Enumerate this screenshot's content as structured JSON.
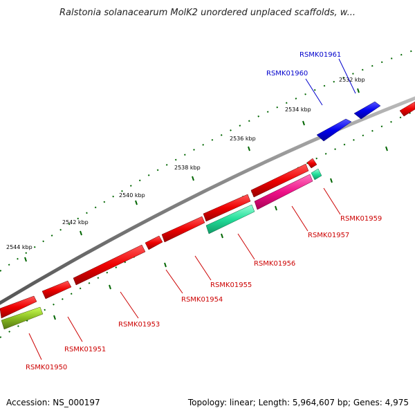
{
  "title": "Ralstonia solanacearum MolK2 unordered unplaced scaffolds, w...",
  "footer": {
    "accession": "Accession: NS_000197",
    "topology": "Topology: linear; Length: 5,964,607 bp; Genes: 4,975"
  },
  "scale_labels": [
    "2532 kbp",
    "2534 kbp",
    "2536 kbp",
    "2538 kbp",
    "2540 kbp",
    "2542 kbp",
    "2544 kbp"
  ],
  "genes": [
    {
      "id": "RSMK01961",
      "color": "#0000cc",
      "strand": "forward"
    },
    {
      "id": "RSMK01960",
      "color": "#0000cc",
      "strand": "forward"
    },
    {
      "id": "RSMK01959",
      "color": "#cc0000",
      "strand": "reverse"
    },
    {
      "id": "RSMK01957",
      "color": "#cc0000",
      "strand": "reverse"
    },
    {
      "id": "RSMK01956",
      "color": "#cc0000",
      "strand": "reverse"
    },
    {
      "id": "RSMK01955",
      "color": "#cc0000",
      "strand": "reverse"
    },
    {
      "id": "RSMK01954",
      "color": "#cc0000",
      "strand": "reverse"
    },
    {
      "id": "RSMK01953",
      "color": "#cc0000",
      "strand": "reverse"
    },
    {
      "id": "RSMK01951",
      "color": "#cc0000",
      "strand": "reverse"
    },
    {
      "id": "RSMK01950",
      "color": "#cc0000",
      "strand": "reverse"
    }
  ],
  "colors": {
    "forward_gene": "#0000ee",
    "reverse_gene": "#ee0000",
    "backbone": "#808080",
    "scale_ticks": "#006600",
    "feature_magenta": "#ee1188",
    "feature_teal": "#22dd99",
    "feature_olive": "#88cc22"
  }
}
